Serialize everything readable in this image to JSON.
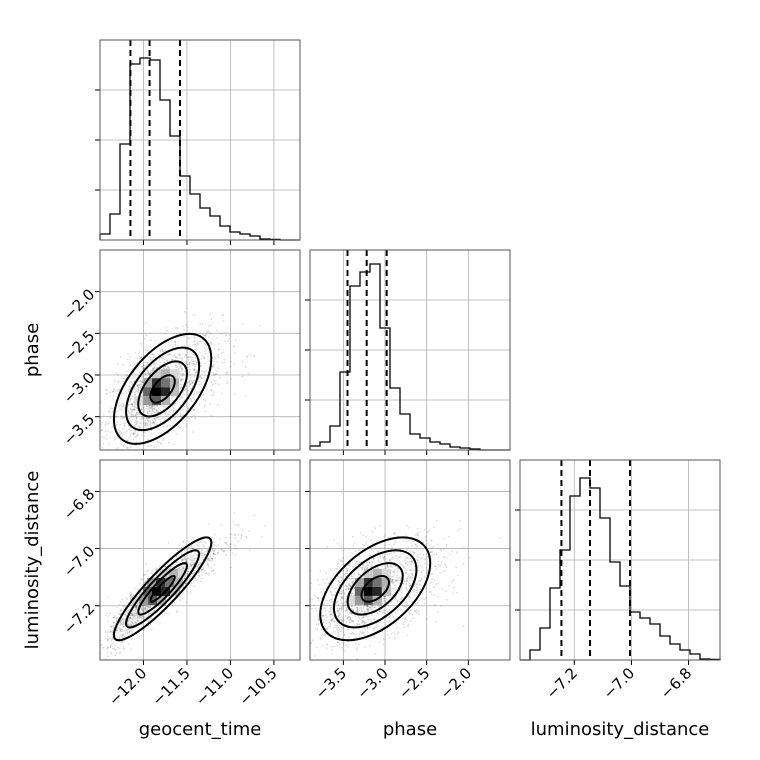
{
  "chart_data": {
    "type": "corner",
    "parameters": [
      "geocent_time",
      "phase",
      "luminosity_distance"
    ],
    "axis_labels": {
      "x": [
        "geocent_time",
        "phase",
        "luminosity_distance"
      ],
      "y": [
        "",
        "phase",
        "luminosity_distance"
      ]
    },
    "ranges": {
      "geocent_time": [
        -12.5,
        -10.2
      ],
      "phase": [
        -3.9,
        -1.5
      ],
      "luminosity_distance": [
        -7.39,
        -6.69
      ]
    },
    "ticks": {
      "geocent_time": {
        "values": [
          -12.0,
          -11.5,
          -11.0,
          -10.5
        ],
        "labels": [
          "−12.0",
          "−11.5",
          "−11.0",
          "−10.5"
        ]
      },
      "phase": {
        "values": [
          -3.5,
          -3.0,
          -2.5,
          -2.0
        ],
        "labels": [
          "−3.5",
          "−3.0",
          "−2.5",
          "−2.0"
        ]
      },
      "luminosity_distance": {
        "values": [
          -7.2,
          -7.0,
          -6.8
        ],
        "labels": [
          "−7.2",
          "−7.0",
          "−6.8"
        ]
      }
    },
    "hist_ymax": 1.0,
    "histograms": {
      "geocent_time": [
        0.03,
        0.13,
        0.48,
        0.88,
        0.91,
        0.9,
        0.7,
        0.52,
        0.32,
        0.23,
        0.16,
        0.12,
        0.07,
        0.04,
        0.03,
        0.02,
        0.005,
        0.003,
        0.0,
        0.0
      ],
      "phase": [
        0.02,
        0.04,
        0.12,
        0.39,
        0.82,
        0.89,
        0.93,
        0.61,
        0.31,
        0.18,
        0.08,
        0.06,
        0.04,
        0.03,
        0.015,
        0.01,
        0.005,
        0.0,
        0.0,
        0.0
      ],
      "luminosity_distance": [
        0.0,
        0.05,
        0.16,
        0.36,
        0.55,
        0.82,
        0.91,
        0.86,
        0.71,
        0.49,
        0.37,
        0.24,
        0.21,
        0.18,
        0.12,
        0.08,
        0.05,
        0.03,
        0.005,
        0.003
      ]
    },
    "quantiles": {
      "geocent_time": [
        -12.15,
        -11.93,
        -11.58
      ],
      "phase": [
        -3.45,
        -3.22,
        -2.98
      ],
      "luminosity_distance": [
        -7.245,
        -7.145,
        -7.005
      ]
    },
    "panels_2d": [
      {
        "x": "geocent_time",
        "y": "phase",
        "mean": [
          -11.85,
          -3.2
        ],
        "sd": [
          0.28,
          0.33
        ],
        "corr": 0.55,
        "n": 1600,
        "contour_levels_sigma": [
          0.5,
          1.0,
          1.5,
          2.0
        ]
      },
      {
        "x": "geocent_time",
        "y": "luminosity_distance",
        "mean": [
          -11.85,
          -7.15
        ],
        "sd": [
          0.28,
          0.09
        ],
        "corr": 0.9,
        "n": 1600,
        "contour_levels_sigma": [
          0.5,
          1.0,
          1.5,
          2.0
        ]
      },
      {
        "x": "phase",
        "y": "luminosity_distance",
        "mean": [
          -3.2,
          -7.15
        ],
        "sd": [
          0.33,
          0.09
        ],
        "corr": 0.5,
        "n": 1600,
        "contour_levels_sigma": [
          0.5,
          1.0,
          1.5,
          2.0
        ]
      }
    ],
    "grid": true,
    "colors": {
      "hist": "#000000",
      "scatter": "#000000",
      "density_dark": "#000000",
      "grid": "#b0b0b0"
    }
  }
}
